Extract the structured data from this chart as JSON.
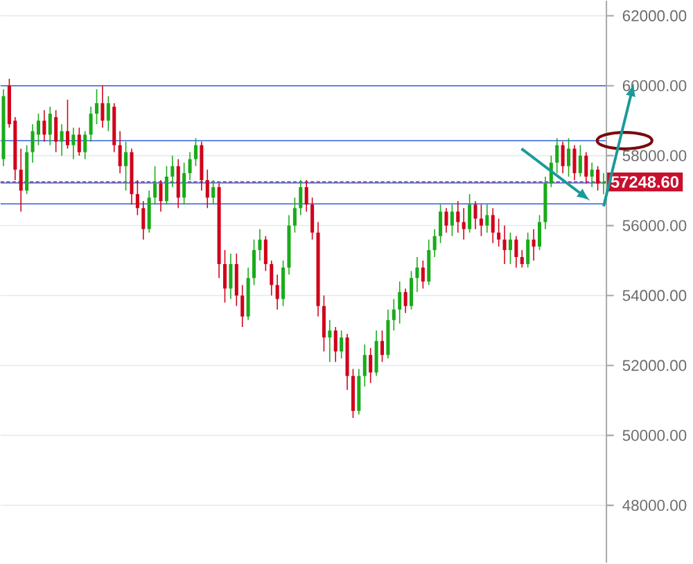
{
  "chart_data": {
    "type": "candlestick",
    "categories": [
      null,
      null,
      null,
      null,
      null,
      null,
      null,
      null,
      null,
      null,
      null,
      null,
      null,
      null,
      null,
      null,
      null,
      null,
      null,
      null,
      null,
      null,
      null,
      null,
      null,
      null,
      null,
      null,
      null,
      null,
      null,
      null,
      null,
      null,
      null,
      null,
      null,
      null,
      null,
      null,
      null,
      null,
      null,
      null,
      null,
      null,
      null,
      null,
      null,
      null,
      null,
      null,
      null,
      null,
      null,
      null,
      null,
      null,
      null,
      null,
      null,
      null,
      null,
      null,
      null,
      null,
      null,
      null,
      null,
      null,
      null,
      null,
      null,
      null,
      null,
      null,
      null,
      null,
      null,
      null,
      null,
      null,
      null,
      null,
      null,
      null,
      null,
      null,
      null,
      null,
      null,
      null,
      null,
      null,
      null,
      null,
      null,
      null,
      null,
      null,
      null,
      null,
      null,
      null
    ],
    "ohlc": [
      [
        57900,
        59900,
        57700,
        59700
      ],
      [
        60000,
        60200,
        58800,
        58900
      ],
      [
        59000,
        59100,
        57300,
        57600
      ],
      [
        57600,
        58200,
        56400,
        57000
      ],
      [
        57000,
        58300,
        56900,
        58100
      ],
      [
        58100,
        58900,
        57800,
        58700
      ],
      [
        58600,
        59200,
        58300,
        59000
      ],
      [
        59000,
        59300,
        58400,
        58600
      ],
      [
        58600,
        59400,
        58300,
        59200
      ],
      [
        59100,
        59300,
        58100,
        58400
      ],
      [
        58400,
        58900,
        58000,
        58700
      ],
      [
        58700,
        59600,
        58200,
        58300
      ],
      [
        58300,
        58800,
        57900,
        58600
      ],
      [
        58600,
        58800,
        58000,
        58100
      ],
      [
        58100,
        58700,
        57900,
        58600
      ],
      [
        58600,
        59400,
        58400,
        59200
      ],
      [
        59200,
        59900,
        58900,
        59500
      ],
      [
        59500,
        60000,
        58800,
        59000
      ],
      [
        59000,
        59700,
        58700,
        59500
      ],
      [
        59400,
        59500,
        58100,
        58300
      ],
      [
        58300,
        58700,
        57500,
        57700
      ],
      [
        57700,
        58400,
        57000,
        58100
      ],
      [
        58100,
        58200,
        56600,
        56900
      ],
      [
        56900,
        57300,
        56300,
        56500
      ],
      [
        56500,
        56700,
        55600,
        55900
      ],
      [
        55900,
        57000,
        55800,
        56800
      ],
      [
        56800,
        57700,
        56600,
        57200
      ],
      [
        57200,
        57300,
        56400,
        56700
      ],
      [
        56700,
        57700,
        56600,
        57400
      ],
      [
        57400,
        58000,
        57100,
        57700
      ],
      [
        57700,
        57900,
        56500,
        56800
      ],
      [
        56800,
        57800,
        56600,
        57500
      ],
      [
        57500,
        58100,
        57300,
        57900
      ],
      [
        57900,
        58500,
        57700,
        58300
      ],
      [
        58300,
        58400,
        57000,
        57300
      ],
      [
        57300,
        57600,
        56500,
        56800
      ],
      [
        56800,
        57300,
        56600,
        57100
      ],
      [
        57100,
        57200,
        54500,
        54900
      ],
      [
        54900,
        55300,
        53800,
        54200
      ],
      [
        54200,
        55200,
        53900,
        54900
      ],
      [
        54900,
        55200,
        53700,
        54000
      ],
      [
        54000,
        54300,
        53100,
        53400
      ],
      [
        53400,
        54800,
        53300,
        54500
      ],
      [
        54500,
        55600,
        54300,
        55300
      ],
      [
        55300,
        55900,
        55000,
        55600
      ],
      [
        55600,
        55700,
        54700,
        54900
      ],
      [
        54900,
        55000,
        54000,
        54300
      ],
      [
        54300,
        54600,
        53600,
        53900
      ],
      [
        53900,
        55000,
        53700,
        54800
      ],
      [
        54800,
        56300,
        54600,
        56000
      ],
      [
        56000,
        56800,
        55800,
        56500
      ],
      [
        56500,
        57300,
        56300,
        57100
      ],
      [
        57100,
        57300,
        56400,
        56600
      ],
      [
        56600,
        56800,
        55600,
        55800
      ],
      [
        55800,
        56100,
        53400,
        53700
      ],
      [
        53700,
        54000,
        52400,
        52800
      ],
      [
        52800,
        53300,
        52100,
        53000
      ],
      [
        53000,
        53100,
        52100,
        52400
      ],
      [
        52400,
        53000,
        52200,
        52800
      ],
      [
        52800,
        52900,
        51300,
        51700
      ],
      [
        51700,
        51900,
        50500,
        50700
      ],
      [
        50700,
        51900,
        50600,
        51700
      ],
      [
        51700,
        52600,
        51400,
        52300
      ],
      [
        52300,
        52500,
        51500,
        51800
      ],
      [
        51800,
        53000,
        51700,
        52700
      ],
      [
        52700,
        53000,
        52100,
        52300
      ],
      [
        52300,
        53600,
        52200,
        53300
      ],
      [
        53300,
        53900,
        53000,
        53600
      ],
      [
        53600,
        54400,
        53200,
        54100
      ],
      [
        54100,
        54200,
        53500,
        53700
      ],
      [
        53700,
        54700,
        53600,
        54500
      ],
      [
        54500,
        55100,
        54100,
        54800
      ],
      [
        54800,
        55000,
        54200,
        54400
      ],
      [
        54400,
        55600,
        54300,
        55300
      ],
      [
        55300,
        55900,
        55100,
        55700
      ],
      [
        55700,
        56600,
        55500,
        56400
      ],
      [
        56400,
        56500,
        55800,
        56000
      ],
      [
        56000,
        56600,
        55700,
        56400
      ],
      [
        56400,
        56700,
        55800,
        56100
      ],
      [
        56100,
        56500,
        55600,
        55900
      ],
      [
        55900,
        56900,
        55800,
        56600
      ],
      [
        56600,
        56700,
        55900,
        56200
      ],
      [
        56200,
        56600,
        55700,
        56000
      ],
      [
        56000,
        56600,
        55800,
        56300
      ],
      [
        56300,
        56500,
        55500,
        55800
      ],
      [
        55800,
        56200,
        55400,
        55600
      ],
      [
        55600,
        56000,
        54900,
        55300
      ],
      [
        55300,
        55800,
        54900,
        55600
      ],
      [
        55600,
        55700,
        54800,
        55100
      ],
      [
        55100,
        55300,
        54800,
        54900
      ],
      [
        54900,
        55800,
        54800,
        55600
      ],
      [
        55600,
        55900,
        55000,
        55400
      ],
      [
        55400,
        56300,
        55300,
        56100
      ],
      [
        56100,
        57400,
        55900,
        57200
      ],
      [
        57200,
        58000,
        57100,
        57800
      ],
      [
        57800,
        58500,
        57500,
        58300
      ],
      [
        58300,
        58400,
        57500,
        57700
      ],
      [
        57700,
        58500,
        57400,
        58200
      ],
      [
        58200,
        58300,
        57300,
        57500
      ],
      [
        57500,
        58300,
        57400,
        58000
      ],
      [
        58000,
        58100,
        57200,
        57400
      ],
      [
        57400,
        57800,
        57100,
        57600
      ],
      [
        57600,
        57700,
        57000,
        57200
      ],
      [
        57200,
        57500,
        56900,
        57248.6
      ]
    ],
    "colors": [
      "#1aab1a",
      "#d0021b",
      "#d0021b",
      "#d0021b",
      "#1aab1a",
      "#1aab1a",
      "#1aab1a",
      "#d0021b",
      "#1aab1a",
      "#d0021b",
      "#1aab1a",
      "#d0021b",
      "#1aab1a",
      "#d0021b",
      "#1aab1a",
      "#1aab1a",
      "#1aab1a",
      "#d0021b",
      "#1aab1a",
      "#d0021b",
      "#d0021b",
      "#1aab1a",
      "#d0021b",
      "#d0021b",
      "#d0021b",
      "#1aab1a",
      "#1aab1a",
      "#d0021b",
      "#1aab1a",
      "#1aab1a",
      "#d0021b",
      "#1aab1a",
      "#1aab1a",
      "#1aab1a",
      "#d0021b",
      "#d0021b",
      "#1aab1a",
      "#d0021b",
      "#d0021b",
      "#1aab1a",
      "#d0021b",
      "#d0021b",
      "#1aab1a",
      "#1aab1a",
      "#1aab1a",
      "#d0021b",
      "#d0021b",
      "#d0021b",
      "#1aab1a",
      "#1aab1a",
      "#1aab1a",
      "#1aab1a",
      "#d0021b",
      "#d0021b",
      "#d0021b",
      "#d0021b",
      "#1aab1a",
      "#d0021b",
      "#1aab1a",
      "#d0021b",
      "#d0021b",
      "#1aab1a",
      "#1aab1a",
      "#d0021b",
      "#1aab1a",
      "#d0021b",
      "#1aab1a",
      "#1aab1a",
      "#1aab1a",
      "#d0021b",
      "#1aab1a",
      "#1aab1a",
      "#d0021b",
      "#1aab1a",
      "#1aab1a",
      "#1aab1a",
      "#d0021b",
      "#1aab1a",
      "#d0021b",
      "#d0021b",
      "#1aab1a",
      "#d0021b",
      "#d0021b",
      "#1aab1a",
      "#d0021b",
      "#d0021b",
      "#d0021b",
      "#1aab1a",
      "#d0021b",
      "#d0021b",
      "#1aab1a",
      "#d0021b",
      "#1aab1a",
      "#1aab1a",
      "#1aab1a",
      "#1aab1a",
      "#d0021b",
      "#1aab1a",
      "#d0021b",
      "#1aab1a",
      "#d0021b",
      "#1aab1a",
      "#d0021b",
      "#1aab1a"
    ],
    "ref_lines": [
      {
        "axis": "y",
        "value": 57248.6,
        "label": "57248.60",
        "color": "#c8102e",
        "line_style": "dashed"
      },
      {
        "axis": "y",
        "value": 60000,
        "color": "#2f5fd8",
        "line_style": "solid"
      },
      {
        "axis": "y",
        "value": 58430,
        "color": "#2f5fd8",
        "line_style": "solid"
      },
      {
        "axis": "y",
        "value": 57220,
        "color": "#2f5fd8",
        "line_style": "solid"
      },
      {
        "axis": "y",
        "value": 56620,
        "color": "#2f5fd8",
        "line_style": "solid"
      }
    ],
    "ylim": [
      46360,
      62430
    ],
    "yticks": [
      {
        "value": 48000,
        "label": "48000.00"
      },
      {
        "value": 50000,
        "label": "50000.00"
      },
      {
        "value": 52000,
        "label": "52000.00"
      },
      {
        "value": 54000,
        "label": "54000.00"
      },
      {
        "value": 56000,
        "label": "56000.00"
      },
      {
        "value": 58000,
        "label": "58000.00"
      },
      {
        "value": 60000,
        "label": "60000.00"
      },
      {
        "value": 62000,
        "label": "62000.00"
      }
    ],
    "tick_labels": "y",
    "grid": "y"
  }
}
